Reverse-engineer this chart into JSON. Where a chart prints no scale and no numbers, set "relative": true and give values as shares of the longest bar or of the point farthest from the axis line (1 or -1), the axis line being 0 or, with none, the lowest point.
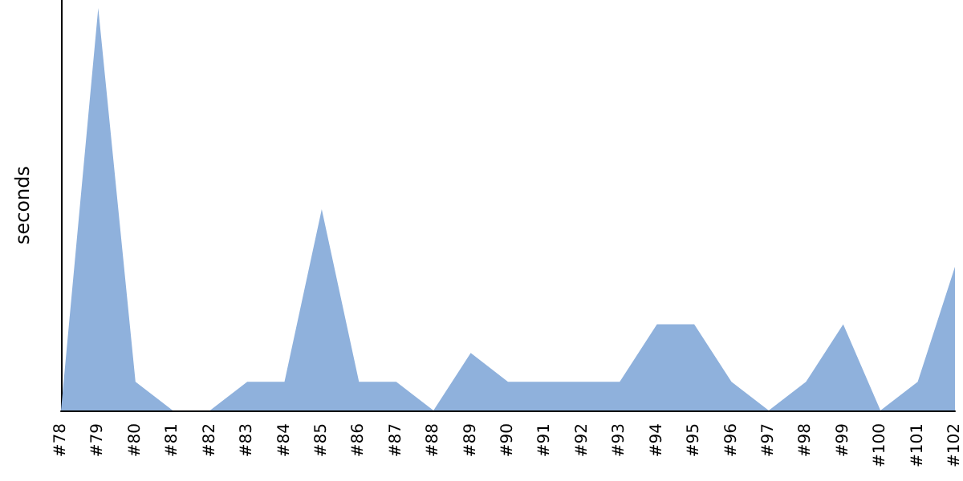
{
  "chart_data": {
    "type": "area",
    "ylabel": "seconds",
    "relative": true,
    "categories": [
      "#78",
      "#79",
      "#80",
      "#81",
      "#82",
      "#83",
      "#84",
      "#85",
      "#86",
      "#87",
      "#88",
      "#89",
      "#90",
      "#91",
      "#92",
      "#93",
      "#94",
      "#95",
      "#96",
      "#97",
      "#98",
      "#99",
      "#100",
      "#101",
      "#102"
    ],
    "series": [
      {
        "color": "#8fb1dc",
        "values": [
          0,
          1,
          0.071,
          0,
          0,
          0.071,
          0.071,
          0.5,
          0.071,
          0.071,
          0,
          0.143,
          0.071,
          0.071,
          0.071,
          0.071,
          0.214,
          0.214,
          0.071,
          0,
          0.071,
          0.214,
          0,
          0.071,
          0.357
        ]
      }
    ],
    "marker": "none"
  }
}
